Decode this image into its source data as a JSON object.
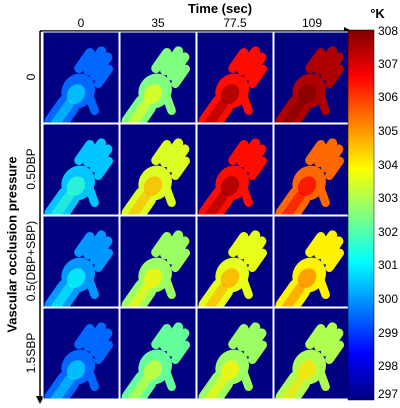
{
  "chart_data": {
    "type": "heatmap",
    "title": "Time (sec)",
    "xlabel": "Time (sec)",
    "ylabel": "Vascular occlusion pressure",
    "x": [
      "0",
      "35",
      "77.5",
      "109"
    ],
    "y": [
      "0",
      "0.5DBP",
      "0.5(DBP+SBP)",
      "1.5SBP"
    ],
    "colorbar": {
      "unit": "°K",
      "ticks": [
        "308",
        "307",
        "306",
        "305",
        "304",
        "303",
        "302",
        "301",
        "300",
        "299",
        "298",
        "297"
      ],
      "range": [
        297,
        308
      ],
      "colormap": "jet"
    },
    "approx_hand_temperature_K": [
      [
        299.5,
        302.5,
        306.5,
        307.5
      ],
      [
        300.5,
        303.5,
        306.5,
        305.5
      ],
      [
        300.0,
        302.8,
        303.6,
        304.0
      ],
      [
        299.5,
        302.2,
        302.8,
        303.0
      ]
    ],
    "background_temperature_K": 297
  }
}
